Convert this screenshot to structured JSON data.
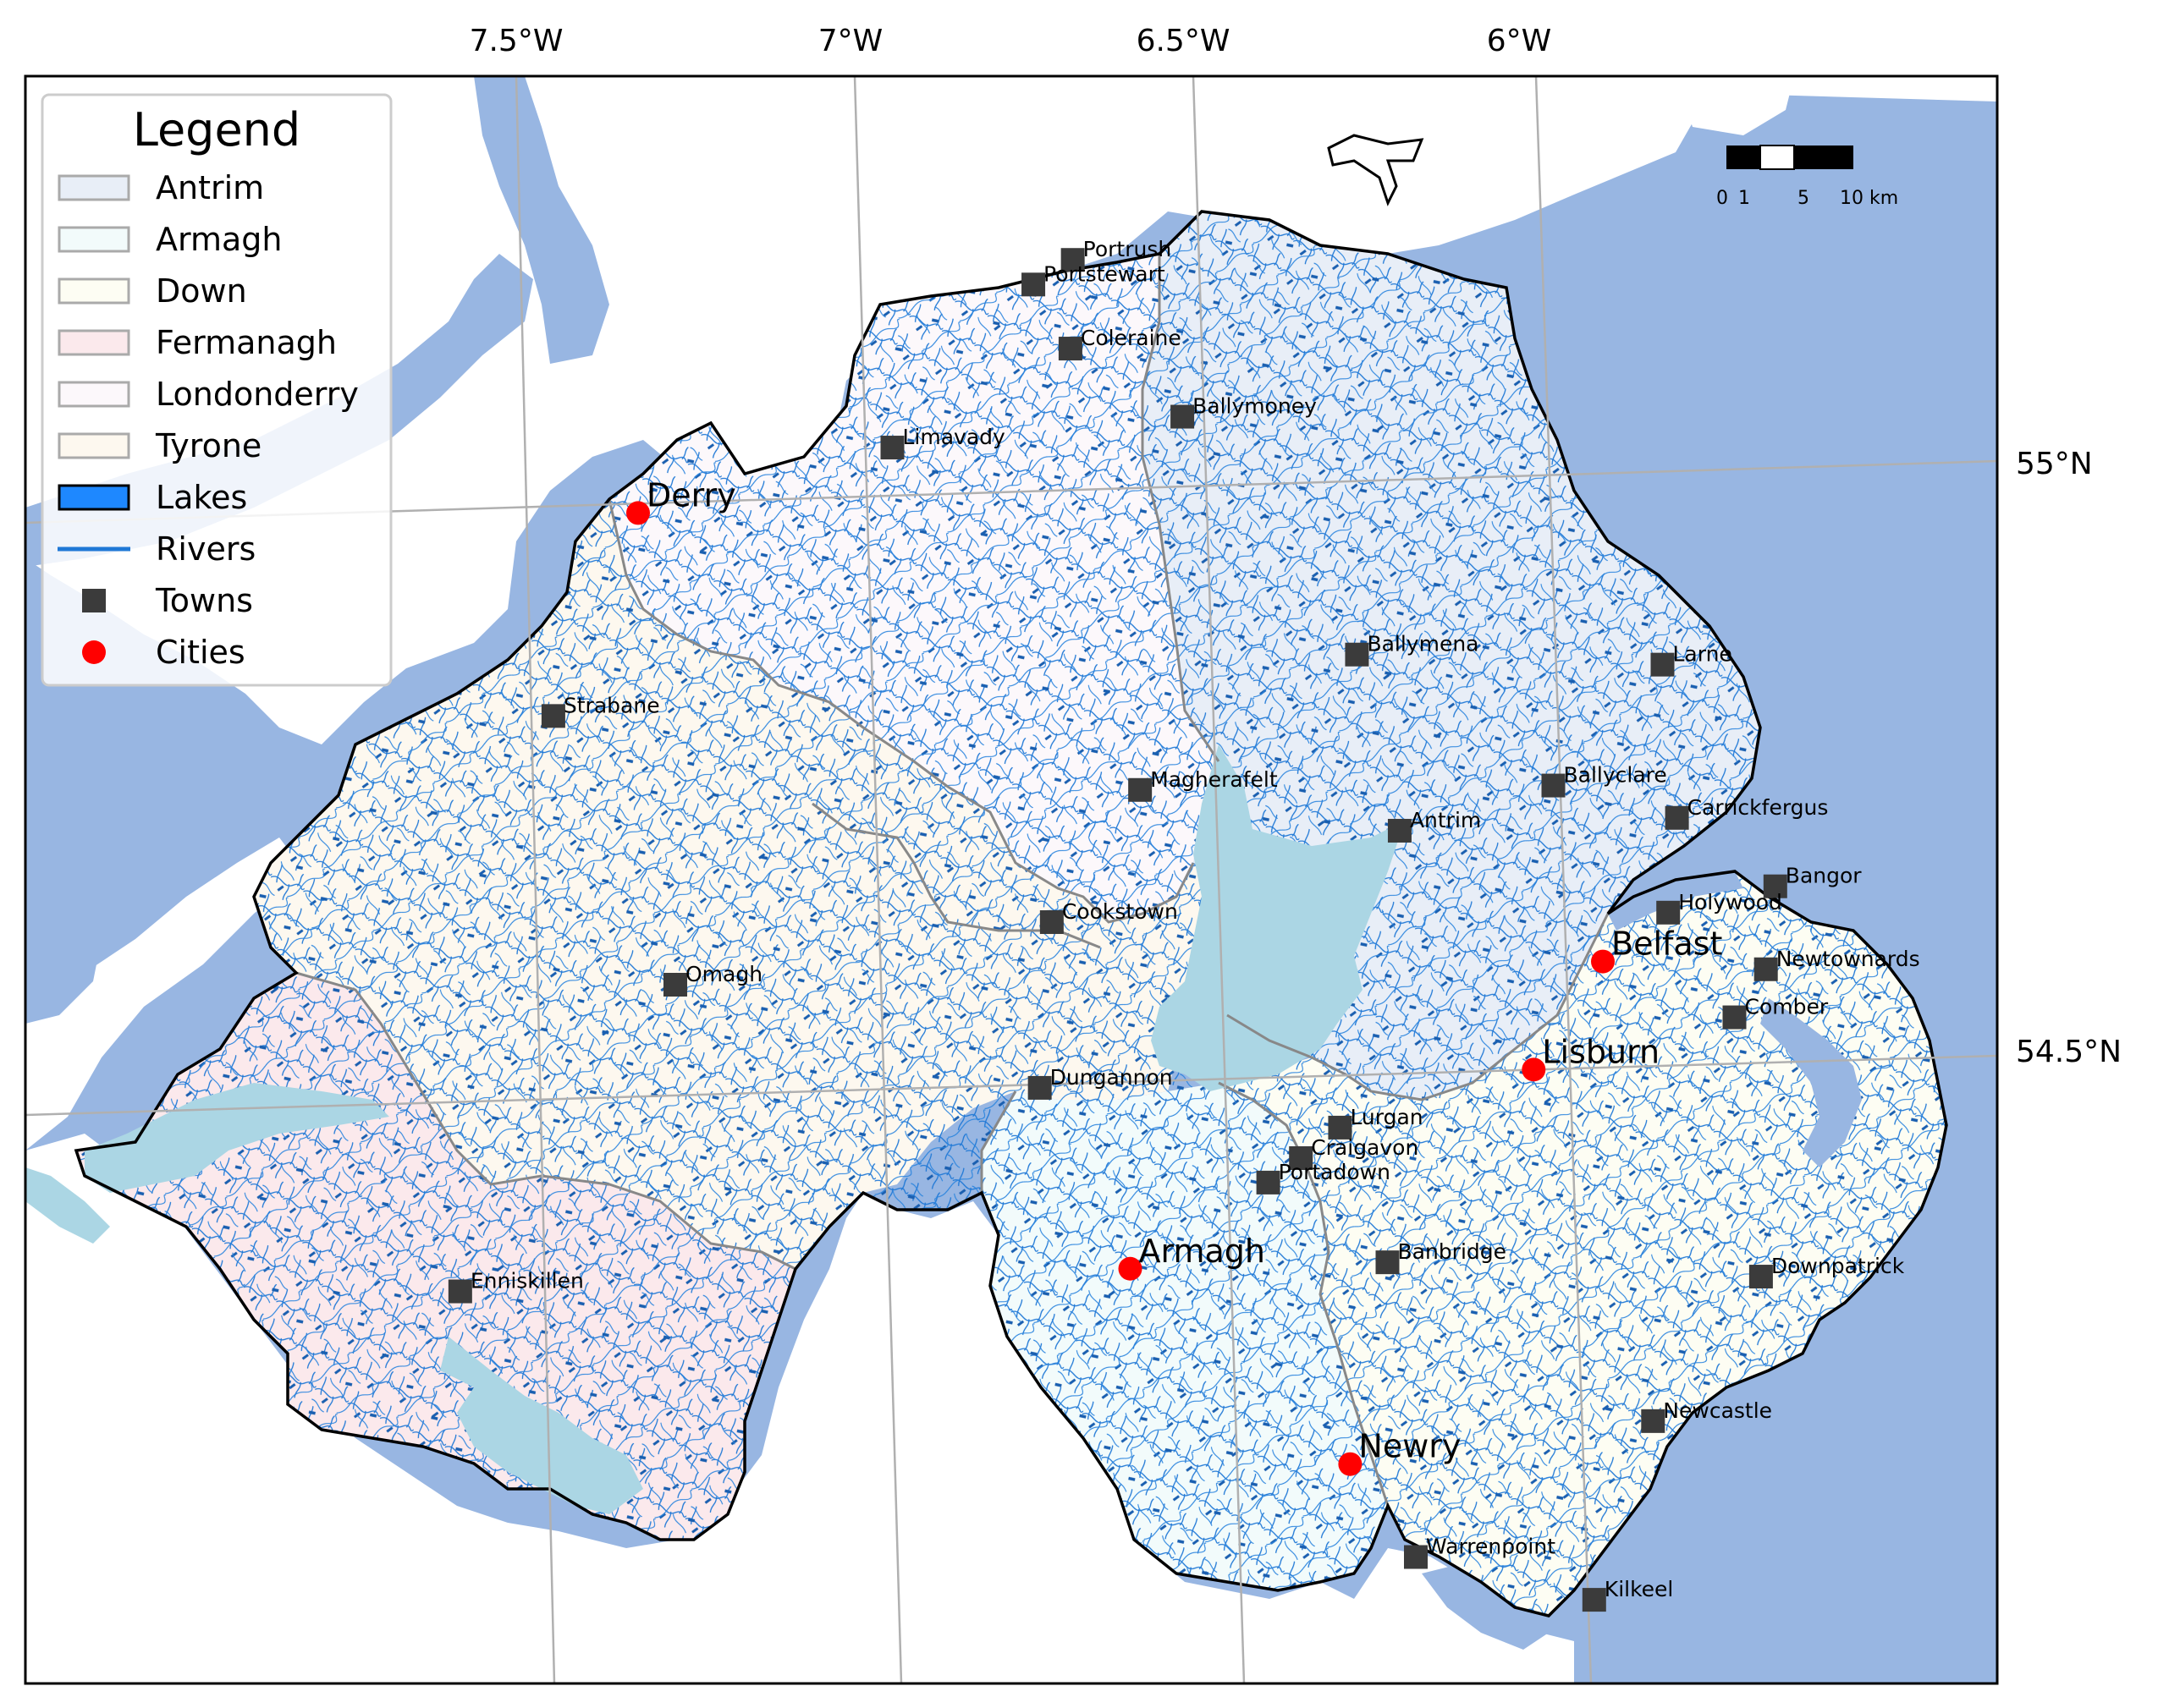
{
  "colors": {
    "sea": "#98b6e2",
    "land": "#ffffff",
    "antrim": "#e8eef7",
    "armagh": "#f2fbfb",
    "down": "#fdfdf3",
    "fermanagh": "#fbe9ec",
    "londonderry": "#fcf8fb",
    "tyrone": "#fdf8ef",
    "lakes_legend": "#1e88ff",
    "lake_fill": "#abd6e4",
    "rivers": "#1f78d6",
    "towns": "#3b3b3b",
    "cities": "#ff0000",
    "county_border": "#888888",
    "grid": "#b0b0b0"
  },
  "axes": {
    "top_ticks": [
      "7.5°W",
      "7°W",
      "6.5°W",
      "6°W"
    ],
    "right_ticks": [
      "55°N",
      "54.5°N"
    ]
  },
  "legend": {
    "title": "Legend",
    "entries": [
      {
        "label": "Antrim",
        "kind": "patch",
        "color": "#e8eef7"
      },
      {
        "label": "Armagh",
        "kind": "patch",
        "color": "#f2fbfb"
      },
      {
        "label": "Down",
        "kind": "patch",
        "color": "#fdfdf3"
      },
      {
        "label": "Fermanagh",
        "kind": "patch",
        "color": "#fbe9ec"
      },
      {
        "label": "Londonderry",
        "kind": "patch",
        "color": "#fcf8fb"
      },
      {
        "label": "Tyrone",
        "kind": "patch",
        "color": "#fdf8ef"
      },
      {
        "label": "Lakes",
        "kind": "lake",
        "color": "#1e88ff"
      },
      {
        "label": "Rivers",
        "kind": "line",
        "color": "#1f78d6"
      },
      {
        "label": "Towns",
        "kind": "square",
        "color": "#3b3b3b"
      },
      {
        "label": "Cities",
        "kind": "circle",
        "color": "#ff0000"
      }
    ]
  },
  "scale_bar": {
    "labels": [
      "0",
      "1",
      "5",
      "10 km"
    ]
  },
  "towns": [
    {
      "name": "Portrush",
      "lon": -6.66,
      "lat": 55.205
    },
    {
      "name": "Portstewart",
      "lon": -6.72,
      "lat": 55.185
    },
    {
      "name": "Coleraine",
      "lon": -6.67,
      "lat": 55.13
    },
    {
      "name": "Ballymoney",
      "lon": -6.51,
      "lat": 55.07
    },
    {
      "name": "Limavady",
      "lon": -6.94,
      "lat": 55.05
    },
    {
      "name": "Ballymena",
      "lon": -6.27,
      "lat": 54.865
    },
    {
      "name": "Larne",
      "lon": -5.82,
      "lat": 54.85
    },
    {
      "name": "Strabane",
      "lon": -7.46,
      "lat": 54.83
    },
    {
      "name": "Ballyclare",
      "lon": -5.99,
      "lat": 54.75
    },
    {
      "name": "Magherafelt",
      "lon": -6.6,
      "lat": 54.755
    },
    {
      "name": "Carrickfergus",
      "lon": -5.81,
      "lat": 54.72
    },
    {
      "name": "Antrim",
      "lon": -6.22,
      "lat": 54.715
    },
    {
      "name": "Bangor",
      "lon": -5.67,
      "lat": 54.66
    },
    {
      "name": "Holywood",
      "lon": -5.83,
      "lat": 54.64
    },
    {
      "name": "Cookstown",
      "lon": -6.74,
      "lat": 54.645
    },
    {
      "name": "Newtownards",
      "lon": -5.69,
      "lat": 54.59
    },
    {
      "name": "Omagh",
      "lon": -7.3,
      "lat": 54.6
    },
    {
      "name": "Comber",
      "lon": -5.74,
      "lat": 54.55
    },
    {
      "name": "Dungannon",
      "lon": -6.77,
      "lat": 54.505
    },
    {
      "name": "Lurgan",
      "lon": -6.33,
      "lat": 54.465
    },
    {
      "name": "Craigavon",
      "lon": -6.39,
      "lat": 54.44
    },
    {
      "name": "Portadown",
      "lon": -6.44,
      "lat": 54.42
    },
    {
      "name": "Banbridge",
      "lon": -6.27,
      "lat": 54.35
    },
    {
      "name": "Downpatrick",
      "lon": -5.72,
      "lat": 54.33
    },
    {
      "name": "Enniskillen",
      "lon": -7.64,
      "lat": 54.345
    },
    {
      "name": "Newcastle",
      "lon": -5.89,
      "lat": 54.21
    },
    {
      "name": "Warrenpoint",
      "lon": -6.25,
      "lat": 54.1
    },
    {
      "name": "Kilkeel",
      "lon": -5.99,
      "lat": 54.06
    }
  ],
  "cities": [
    {
      "name": "Derry",
      "lon": -7.32,
      "lat": 55.0
    },
    {
      "name": "Belfast",
      "lon": -5.93,
      "lat": 54.6
    },
    {
      "name": "Lisburn",
      "lon": -6.04,
      "lat": 54.51
    },
    {
      "name": "Armagh",
      "lon": -6.65,
      "lat": 54.35
    },
    {
      "name": "Newry",
      "lon": -6.34,
      "lat": 54.18
    }
  ]
}
